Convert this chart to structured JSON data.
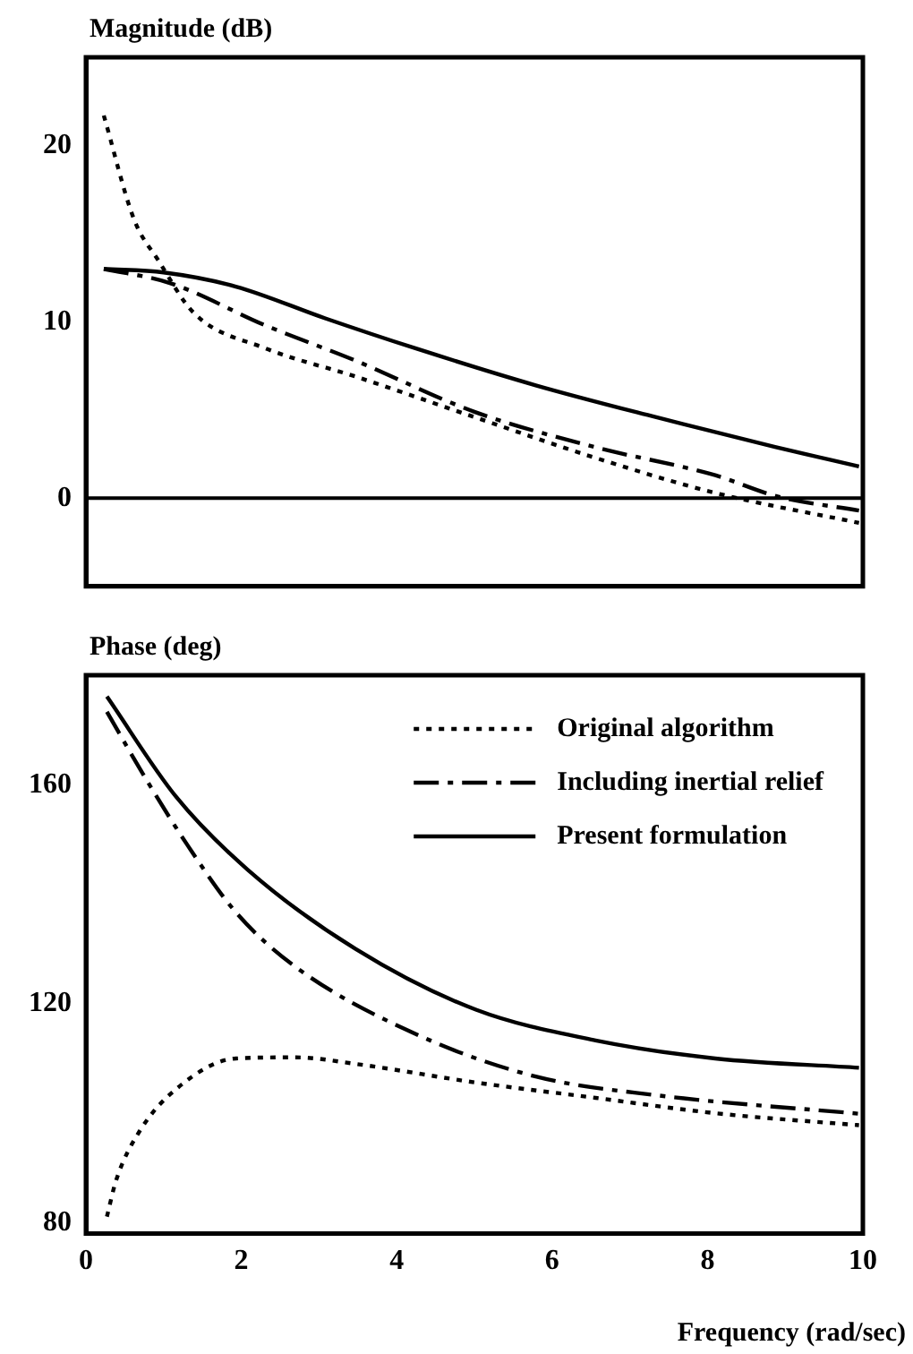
{
  "chart_data": [
    {
      "type": "line",
      "ylabel": "Magnitude (dB)",
      "xlim": [
        0,
        10
      ],
      "xticks": [
        0,
        2,
        4,
        6,
        8,
        10
      ],
      "ylim": [
        -5,
        25
      ],
      "yticks": [
        0,
        10,
        20
      ],
      "tick_labels": "y",
      "grid": false,
      "legend": false,
      "marker": "none",
      "ref_lines": [
        {
          "axis": "y",
          "value": 0,
          "color": "#000000",
          "line_style": "solid"
        }
      ],
      "series": [
        {
          "color": "#000000",
          "line_style": "dotted",
          "x": [
            0.23,
            0.62,
            0.93,
            1.39,
            2.31,
            3.47,
            5.0,
            6.55,
            8.1,
            9.95
          ],
          "values": [
            21.7,
            15.8,
            13.5,
            10.5,
            8.5,
            6.9,
            4.6,
            2.3,
            0.3,
            -1.4
          ]
        },
        {
          "color": "#000000",
          "line_style": "dashed",
          "x": [
            0.23,
            1.08,
            2.31,
            3.47,
            5.0,
            6.55,
            8.1,
            8.9,
            9.95
          ],
          "values": [
            13.0,
            12.2,
            9.8,
            7.8,
            4.9,
            2.9,
            1.3,
            0.1,
            -0.7
          ]
        },
        {
          "color": "#000000",
          "line_style": "solid",
          "x": [
            0.23,
            1.0,
            1.93,
            3.08,
            4.24,
            5.79,
            7.33,
            8.87,
            9.95
          ],
          "values": [
            13.0,
            12.8,
            12.0,
            10.2,
            8.5,
            6.4,
            4.6,
            2.9,
            1.8
          ]
        }
      ]
    },
    {
      "type": "line",
      "ylabel": "Phase (deg)",
      "xlabel": "Frequency (rad/sec)",
      "xlim": [
        0,
        10
      ],
      "xticks": [
        0,
        2,
        4,
        6,
        8,
        10
      ],
      "ylim": [
        78,
        180
      ],
      "yticks": [
        80,
        120,
        160
      ],
      "grid": false,
      "legend": "top right",
      "marker": "none",
      "series": [
        {
          "name": "Original algorithm",
          "color": "#000000",
          "line_style": "dotted",
          "x": [
            0.27,
            0.39,
            0.69,
            1.16,
            1.93,
            2.7,
            3.47,
            5.02,
            6.56,
            8.1,
            9.95
          ],
          "values": [
            81.1,
            87.8,
            96.7,
            104.4,
            110.0,
            110.2,
            109.0,
            105.6,
            102.8,
            100.0,
            97.8
          ]
        },
        {
          "name": "Including inertial relief",
          "color": "#000000",
          "line_style": "dashed",
          "x": [
            0.27,
            0.77,
            1.31,
            1.93,
            2.7,
            4.24,
            5.79,
            7.33,
            9.95
          ],
          "values": [
            173.3,
            161.1,
            148.9,
            136.7,
            126.7,
            114.5,
            106.7,
            103.3,
            99.9
          ]
        },
        {
          "name": "Present formulation",
          "color": "#000000",
          "line_style": "solid",
          "x": [
            0.27,
            1.16,
            2.08,
            3.47,
            5.02,
            6.56,
            8.1,
            9.95
          ],
          "values": [
            176.1,
            157.8,
            144.5,
            130.0,
            118.9,
            113.3,
            110.0,
            108.3
          ]
        }
      ]
    }
  ]
}
